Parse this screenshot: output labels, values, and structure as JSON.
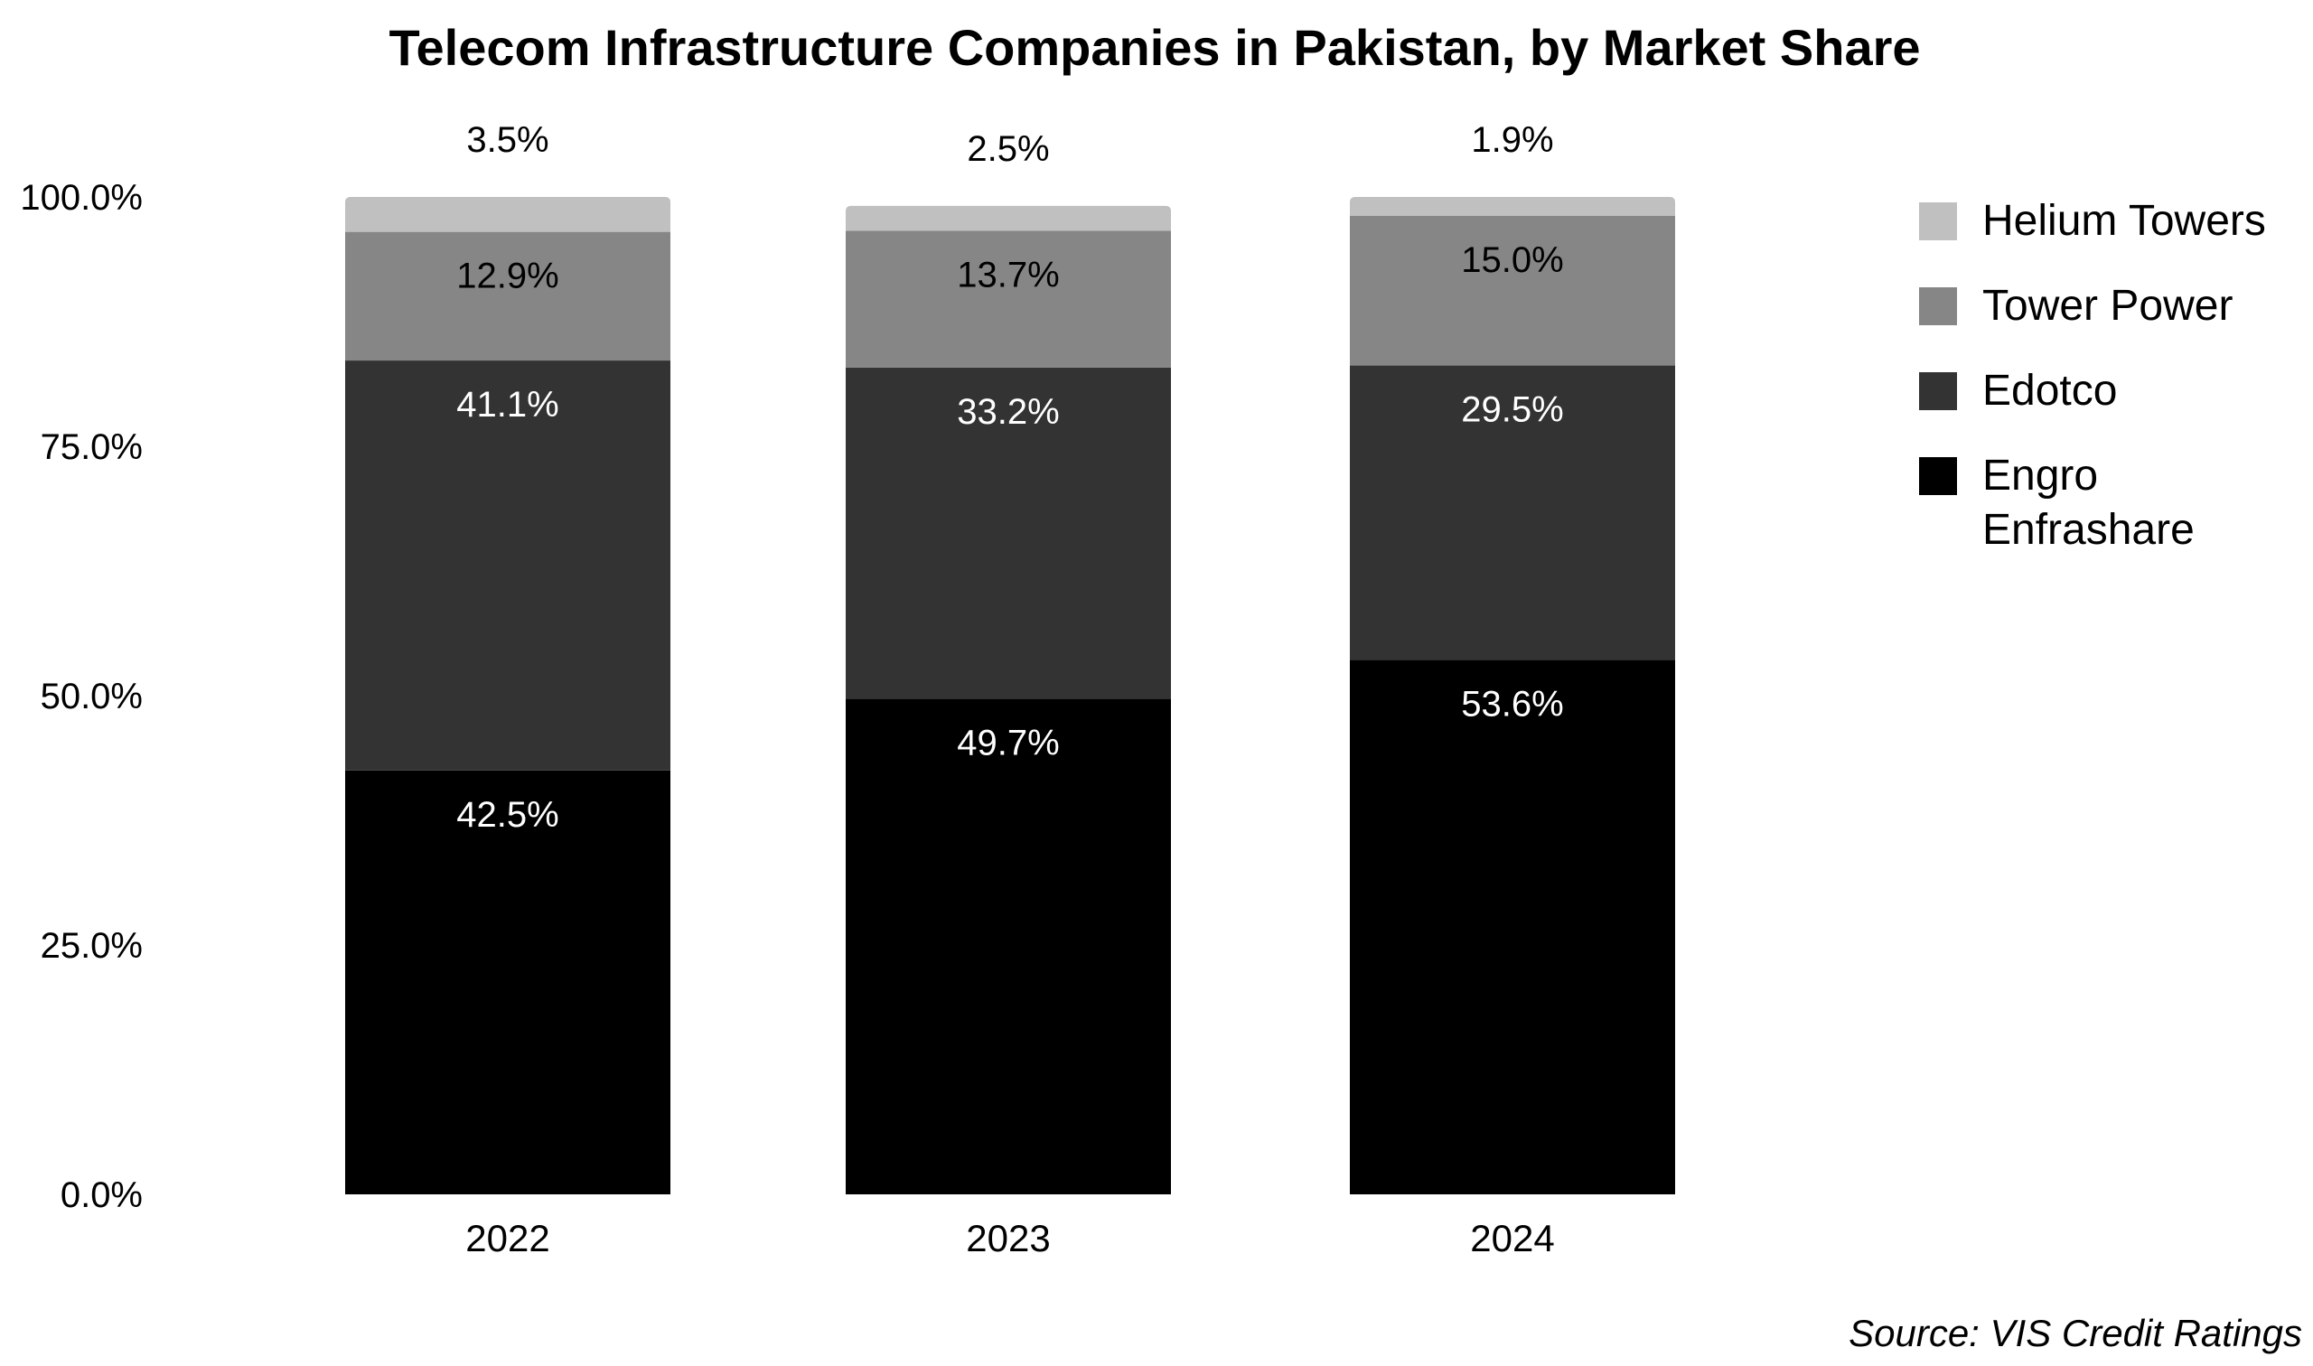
{
  "chart_data": {
    "type": "bar",
    "stacked": true,
    "title": "Telecom Infrastructure Companies in Pakistan, by Market Share",
    "categories": [
      "2022",
      "2023",
      "2024"
    ],
    "series": [
      {
        "name": "Engro Enfrashare",
        "legend_lines": [
          "Engro",
          "Enfrashare"
        ],
        "values": [
          42.5,
          49.7,
          53.6
        ],
        "labels": [
          "42.5%",
          "49.7%",
          "53.6%"
        ],
        "color": "#000000"
      },
      {
        "name": "Edotco",
        "legend_lines": [
          "Edotco"
        ],
        "values": [
          41.1,
          33.2,
          29.5
        ],
        "labels": [
          "41.1%",
          "33.2%",
          "29.5%"
        ],
        "color": "#333333"
      },
      {
        "name": "Tower Power",
        "legend_lines": [
          "Tower Power"
        ],
        "values": [
          12.9,
          13.7,
          15.0
        ],
        "labels": [
          "12.9%",
          "13.7%",
          "15.0%"
        ],
        "color": "#868686"
      },
      {
        "name": "Helium Towers",
        "legend_lines": [
          "Helium Towers"
        ],
        "values": [
          3.5,
          2.5,
          1.9
        ],
        "labels": [
          "3.5%",
          "2.5%",
          "1.9%"
        ],
        "color": "#c0c0c0"
      }
    ],
    "ylim": [
      0,
      100
    ],
    "yticks": [
      0,
      25,
      50,
      75,
      100
    ],
    "ytick_labels": [
      "0.0%",
      "25.0%",
      "50.0%",
      "75.0%",
      "100.0%"
    ],
    "legend_order": [
      "Helium Towers",
      "Tower Power",
      "Edotco",
      "Engro Enfrashare"
    ],
    "legend_position": "right",
    "grid": false,
    "source": "Source: VIS Credit Ratings"
  }
}
